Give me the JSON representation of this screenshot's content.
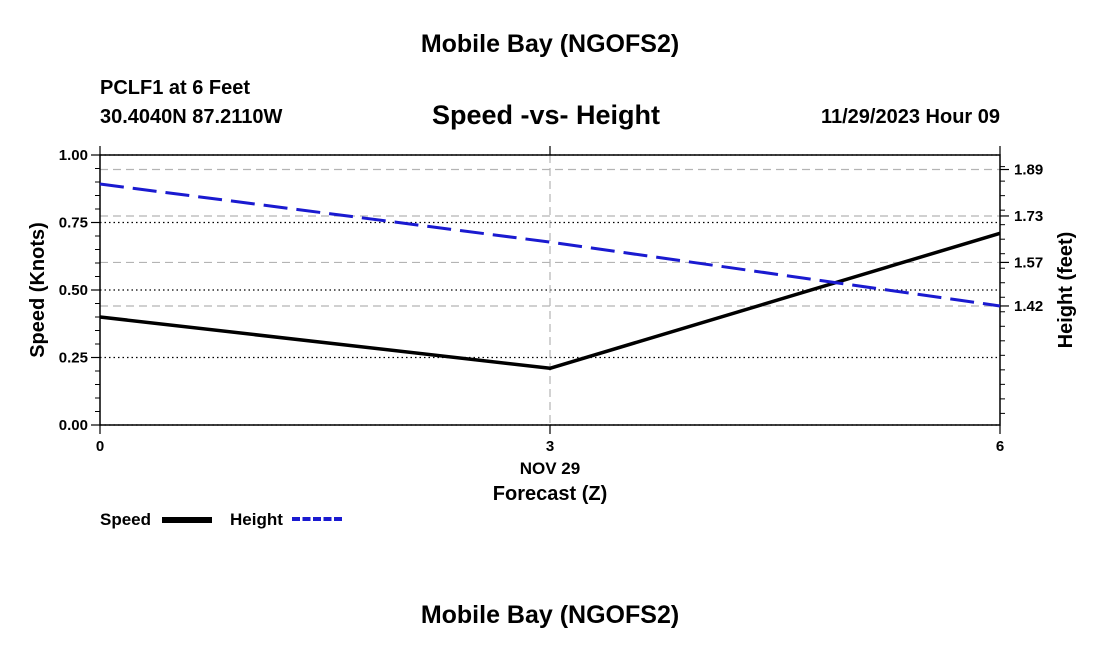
{
  "header": {
    "main_title": "Mobile Bay (NGOFS2)",
    "station": "PCLF1 at 6 Feet",
    "coords": "30.4040N  87.2110W",
    "chart_title": "Speed -vs- Height",
    "datetime": "11/29/2023 Hour 09"
  },
  "footer": {
    "title": "Mobile Bay (NGOFS2)"
  },
  "legend": {
    "speed_label": "Speed",
    "height_label": "Height"
  },
  "colors": {
    "speed": "#000000",
    "height": "#1a1ad0",
    "grid": "#b4b4b4"
  },
  "chart_data": {
    "type": "line",
    "title": "Speed -vs- Height",
    "xlabel": "Forecast (Z)",
    "x_date_label": "NOV 29",
    "ylabel_left": "Speed (Knots)",
    "ylabel_right": "Height (feet)",
    "x": [
      0,
      3,
      6
    ],
    "x_ticks": [
      0,
      3,
      6
    ],
    "xlim": [
      0,
      6
    ],
    "ylim_left": [
      0,
      1
    ],
    "left_ticks": [
      "0.00",
      "0.25",
      "0.50",
      "0.75",
      "1.00"
    ],
    "ylim_right": [
      1.01,
      1.94
    ],
    "right_ticks": [
      "1.42",
      "1.57",
      "1.73",
      "1.89"
    ],
    "series": [
      {
        "name": "Speed",
        "axis": "left",
        "style": "solid",
        "values": [
          0.4,
          0.21,
          0.71
        ]
      },
      {
        "name": "Height",
        "axis": "right",
        "style": "dashed",
        "values": [
          1.84,
          1.64,
          1.42
        ]
      }
    ]
  }
}
